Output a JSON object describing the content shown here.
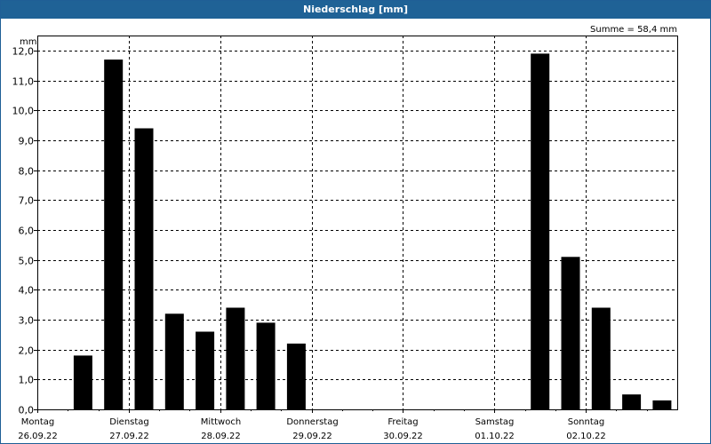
{
  "window": {
    "title": "Niederschlag [mm]"
  },
  "summary": "Summe = 58,4 mm",
  "colors": {
    "titlebar": "#1f6296",
    "bar": "#000000",
    "grid": "#000000"
  },
  "chart_data": {
    "type": "bar",
    "title": "Niederschlag [mm]",
    "ylabel": "mm",
    "ylim": [
      0,
      12.0
    ],
    "y_ticks": [
      "0,0",
      "1,0",
      "2,0",
      "3,0",
      "4,0",
      "5,0",
      "6,0",
      "7,0",
      "8,0",
      "9,0",
      "10,0",
      "11,0",
      "12,0"
    ],
    "grid": true,
    "days": [
      {
        "name": "Montag",
        "date": "26.09.22"
      },
      {
        "name": "Dienstag",
        "date": "27.09.22"
      },
      {
        "name": "Mittwoch",
        "date": "28.09.22"
      },
      {
        "name": "Donnerstag",
        "date": "29.09.22"
      },
      {
        "name": "Freitag",
        "date": "30.09.22"
      },
      {
        "name": "Samstag",
        "date": "01.10.22"
      },
      {
        "name": "Sonntag",
        "date": "02.10.22"
      }
    ],
    "periods_per_day": 3,
    "values": [
      0,
      1.8,
      11.7,
      9.4,
      3.2,
      2.6,
      3.4,
      2.9,
      2.2,
      0,
      0,
      0,
      0,
      0,
      0,
      0,
      11.9,
      5.1,
      3.4,
      0.5,
      0.3
    ]
  }
}
